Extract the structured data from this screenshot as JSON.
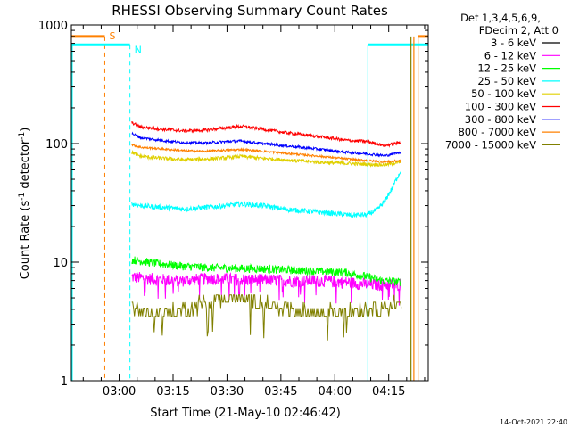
{
  "chart_data": {
    "type": "line",
    "title": "RHESSI Observing Summary Count Rates",
    "xlabel": "Start Time (21-May-10 02:46:42)",
    "ylabel_main": "Count Rate (s",
    "ylabel_sup1": "-1",
    "ylabel_mid": " detector",
    "ylabel_sup2": "-1",
    "ylabel_end": ")",
    "y_scale": "log",
    "ylim": [
      1,
      1000
    ],
    "xlim_minutes": [
      166.7,
      266.0
    ],
    "x_unit": "minutes after 00:00 UT, 21-May-2010",
    "x_ticks": [
      {
        "value": 180,
        "label": "03:00"
      },
      {
        "value": 195,
        "label": "03:15"
      },
      {
        "value": 210,
        "label": "03:30"
      },
      {
        "value": 225,
        "label": "03:45"
      },
      {
        "value": 240,
        "label": "04:00"
      },
      {
        "value": 255,
        "label": "04:15"
      }
    ],
    "y_ticks": [
      {
        "value": 1,
        "label": "1"
      },
      {
        "value": 10,
        "label": "10"
      },
      {
        "value": 100,
        "label": "100"
      },
      {
        "value": 1000,
        "label": "1000"
      }
    ],
    "legend_header": [
      "Det 1,3,4,5,6,9,",
      "FDecim 2, Att 0"
    ],
    "legend_placement": "right",
    "grid": false,
    "series": [
      {
        "name": "3 - 6 keV",
        "color": "#000000",
        "x": [],
        "y": []
      },
      {
        "name": "6 - 12 keV",
        "color": "#ff00ff",
        "x": [
          183.5,
          190,
          197,
          205,
          212,
          220,
          228,
          236,
          243,
          249.5,
          253,
          258.5
        ],
        "y": [
          7.5,
          7.2,
          7.0,
          7.3,
          7.2,
          7.1,
          7.0,
          7.0,
          6.8,
          6.5,
          6.5,
          6.5
        ]
      },
      {
        "name": "12 - 25 keV",
        "color": "#00ff00",
        "x": [
          183.5,
          190,
          197,
          205,
          212,
          220,
          228,
          236,
          243,
          249.5,
          253,
          258.5
        ],
        "y": [
          10.5,
          9.8,
          9.3,
          9.0,
          8.9,
          8.8,
          8.6,
          8.4,
          8.2,
          7.5,
          7.0,
          6.8
        ]
      },
      {
        "name": "25 - 50 keV",
        "color": "#00ffff",
        "x": [
          183.5,
          186,
          192,
          198,
          204,
          210,
          214,
          220,
          226,
          232,
          238,
          244,
          249,
          252,
          254,
          256,
          258.5
        ],
        "y": [
          31,
          30,
          29,
          28,
          29,
          30,
          31,
          30,
          28,
          27,
          26,
          25,
          25,
          28,
          33,
          42,
          60
        ]
      },
      {
        "name": "50 - 100 keV",
        "color": "#e0d000",
        "x": [
          183.5,
          186,
          192,
          198,
          204,
          210,
          214,
          220,
          226,
          232,
          238,
          244,
          249,
          254,
          258.5
        ],
        "y": [
          84,
          78,
          75,
          73,
          74,
          76,
          78,
          75,
          73,
          71,
          69,
          68,
          67,
          66,
          70
        ]
      },
      {
        "name": "100 - 300 keV",
        "color": "#ff0000",
        "x": [
          183.5,
          186,
          192,
          198,
          204,
          210,
          214,
          220,
          226,
          232,
          238,
          244,
          249,
          254,
          258.5
        ],
        "y": [
          150,
          138,
          132,
          128,
          130,
          136,
          140,
          132,
          124,
          118,
          112,
          106,
          104,
          96,
          103
        ]
      },
      {
        "name": "300 - 800 keV",
        "color": "#0000ff",
        "x": [
          183.5,
          186,
          192,
          198,
          204,
          210,
          214,
          220,
          226,
          232,
          238,
          244,
          249,
          254,
          258.5
        ],
        "y": [
          122,
          112,
          106,
          102,
          101,
          104,
          105,
          100,
          96,
          92,
          88,
          84,
          82,
          79,
          85
        ]
      },
      {
        "name": "800 - 7000 keV",
        "color": "#ff8000",
        "x": [
          183.5,
          186,
          192,
          198,
          204,
          210,
          214,
          220,
          226,
          232,
          238,
          244,
          249,
          254,
          258.5
        ],
        "y": [
          98,
          93,
          90,
          87,
          86,
          88,
          89,
          86,
          83,
          80,
          77,
          74,
          72,
          70,
          72
        ]
      },
      {
        "name": "7000 - 15000 keV",
        "color": "#808000",
        "x": [
          183.5,
          190,
          197,
          205,
          212,
          220,
          228,
          236,
          243,
          249.5,
          253,
          258.5
        ],
        "y": [
          4.0,
          3.7,
          3.9,
          4.8,
          5.1,
          4.6,
          4.1,
          3.8,
          3.9,
          4.1,
          4.3,
          4.5
        ]
      }
    ],
    "flags": {
      "saa": {
        "label": "S",
        "color": "#ff8000",
        "level": 800,
        "off_at": 176.0,
        "on_at": 263.2
      },
      "night": {
        "label": "N",
        "color": "#00ffff",
        "level": 680,
        "off_at": 183.0,
        "on_at": 249.2
      }
    },
    "timestamp": "14-Oct-2021 22:40"
  }
}
